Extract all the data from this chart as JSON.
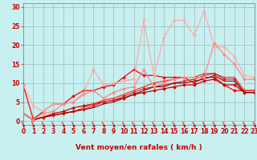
{
  "background_color": "#c8f0f0",
  "grid_color": "#a8c8c8",
  "xlabel": "Vent moyen/en rafales ( km/h )",
  "xlim": [
    0,
    23
  ],
  "ylim": [
    -1,
    31
  ],
  "xticks": [
    0,
    1,
    2,
    3,
    4,
    5,
    6,
    7,
    8,
    9,
    10,
    11,
    12,
    13,
    14,
    15,
    16,
    17,
    18,
    19,
    20,
    21,
    22,
    23
  ],
  "yticks": [
    0,
    5,
    10,
    15,
    20,
    25,
    30
  ],
  "series": [
    {
      "x": [
        0,
        1,
        2,
        3,
        4,
        5,
        6,
        7,
        8,
        9,
        10,
        11,
        12,
        13,
        14,
        15,
        16,
        17,
        18,
        19,
        20,
        21,
        22,
        23
      ],
      "y": [
        9.5,
        0.5,
        2.5,
        4.5,
        4.5,
        6.5,
        8.0,
        8.0,
        9.0,
        9.5,
        11.5,
        13.5,
        12.0,
        12.0,
        11.5,
        11.5,
        11.5,
        10.0,
        11.5,
        11.5,
        9.5,
        8.0,
        8.0,
        8.0
      ],
      "color": "#ff0000",
      "marker": "D",
      "markersize": 2.0,
      "linewidth": 0.9,
      "alpha": 1.0
    },
    {
      "x": [
        0,
        1,
        2,
        3,
        4,
        5,
        6,
        7,
        8,
        9,
        10,
        11,
        12,
        13,
        14,
        15,
        16,
        17,
        18,
        19,
        20,
        21,
        22,
        23
      ],
      "y": [
        2.0,
        0.3,
        1.0,
        2.0,
        2.5,
        3.5,
        4.0,
        4.5,
        5.0,
        5.5,
        6.0,
        7.0,
        7.5,
        8.0,
        8.5,
        9.0,
        9.5,
        9.5,
        10.5,
        11.0,
        9.5,
        9.5,
        7.5,
        7.5
      ],
      "color": "#cc0000",
      "marker": "D",
      "markersize": 2.0,
      "linewidth": 0.9,
      "alpha": 1.0
    },
    {
      "x": [
        0,
        1,
        2,
        3,
        4,
        5,
        6,
        7,
        8,
        9,
        10,
        11,
        12,
        13,
        14,
        15,
        16,
        17,
        18,
        19,
        20,
        21,
        22,
        23
      ],
      "y": [
        2.0,
        0.3,
        1.0,
        1.5,
        2.0,
        2.5,
        3.5,
        4.5,
        5.5,
        6.0,
        7.0,
        8.0,
        9.0,
        10.0,
        10.5,
        11.0,
        11.5,
        11.5,
        12.5,
        12.5,
        11.5,
        11.5,
        8.0,
        8.0
      ],
      "color": "#ff3333",
      "marker": "^",
      "markersize": 2.0,
      "linewidth": 0.9,
      "alpha": 1.0
    },
    {
      "x": [
        0,
        1,
        2,
        3,
        4,
        5,
        6,
        7,
        8,
        9,
        10,
        11,
        12,
        13,
        14,
        15,
        16,
        17,
        18,
        19,
        20,
        21,
        22,
        23
      ],
      "y": [
        2.0,
        0.3,
        1.0,
        1.5,
        2.0,
        2.5,
        3.0,
        4.0,
        5.0,
        5.5,
        6.5,
        7.5,
        8.5,
        9.0,
        9.5,
        10.0,
        10.5,
        11.0,
        12.0,
        12.5,
        11.0,
        11.0,
        7.5,
        7.5
      ],
      "color": "#dd2222",
      "marker": "D",
      "markersize": 1.8,
      "linewidth": 0.8,
      "alpha": 1.0
    },
    {
      "x": [
        0,
        1,
        2,
        3,
        4,
        5,
        6,
        7,
        8,
        9,
        10,
        11,
        12,
        13,
        14,
        15,
        16,
        17,
        18,
        19,
        20,
        21,
        22,
        23
      ],
      "y": [
        2.0,
        0.3,
        1.0,
        1.5,
        2.0,
        2.5,
        3.0,
        3.5,
        4.5,
        5.0,
        6.0,
        7.0,
        8.0,
        9.0,
        9.0,
        10.0,
        10.0,
        10.5,
        11.0,
        12.0,
        10.5,
        10.5,
        7.5,
        7.5
      ],
      "color": "#880000",
      "marker": null,
      "markersize": 0,
      "linewidth": 0.8,
      "alpha": 1.0
    },
    {
      "x": [
        0,
        1,
        2,
        3,
        4,
        5,
        6,
        7,
        8,
        9,
        10,
        11,
        12,
        13,
        14,
        15,
        16,
        17,
        18,
        19,
        20,
        21,
        22,
        23
      ],
      "y": [
        9.5,
        4.0,
        2.5,
        4.5,
        4.5,
        5.0,
        7.5,
        13.5,
        9.5,
        10.0,
        10.5,
        11.0,
        26.5,
        12.0,
        22.0,
        26.5,
        26.5,
        22.5,
        29.0,
        19.5,
        19.5,
        17.0,
        12.0,
        11.5
      ],
      "color": "#ffaaaa",
      "marker": "D",
      "markersize": 2.0,
      "linewidth": 0.9,
      "alpha": 1.0
    },
    {
      "x": [
        0,
        1,
        2,
        3,
        4,
        5,
        6,
        7,
        8,
        9,
        10,
        11,
        12,
        13,
        14,
        15,
        16,
        17,
        18,
        19,
        20,
        21,
        22,
        23
      ],
      "y": [
        2.0,
        0.3,
        2.0,
        2.5,
        4.5,
        5.0,
        7.0,
        8.0,
        6.0,
        7.5,
        8.5,
        9.0,
        13.5,
        9.0,
        10.0,
        11.0,
        11.5,
        11.5,
        11.5,
        20.5,
        17.5,
        15.0,
        11.0,
        11.0
      ],
      "color": "#ff8888",
      "marker": "D",
      "markersize": 2.0,
      "linewidth": 0.9,
      "alpha": 1.0
    }
  ],
  "tick_fontsize": 5.5,
  "label_fontsize": 6.5,
  "label_fontweight": "bold"
}
